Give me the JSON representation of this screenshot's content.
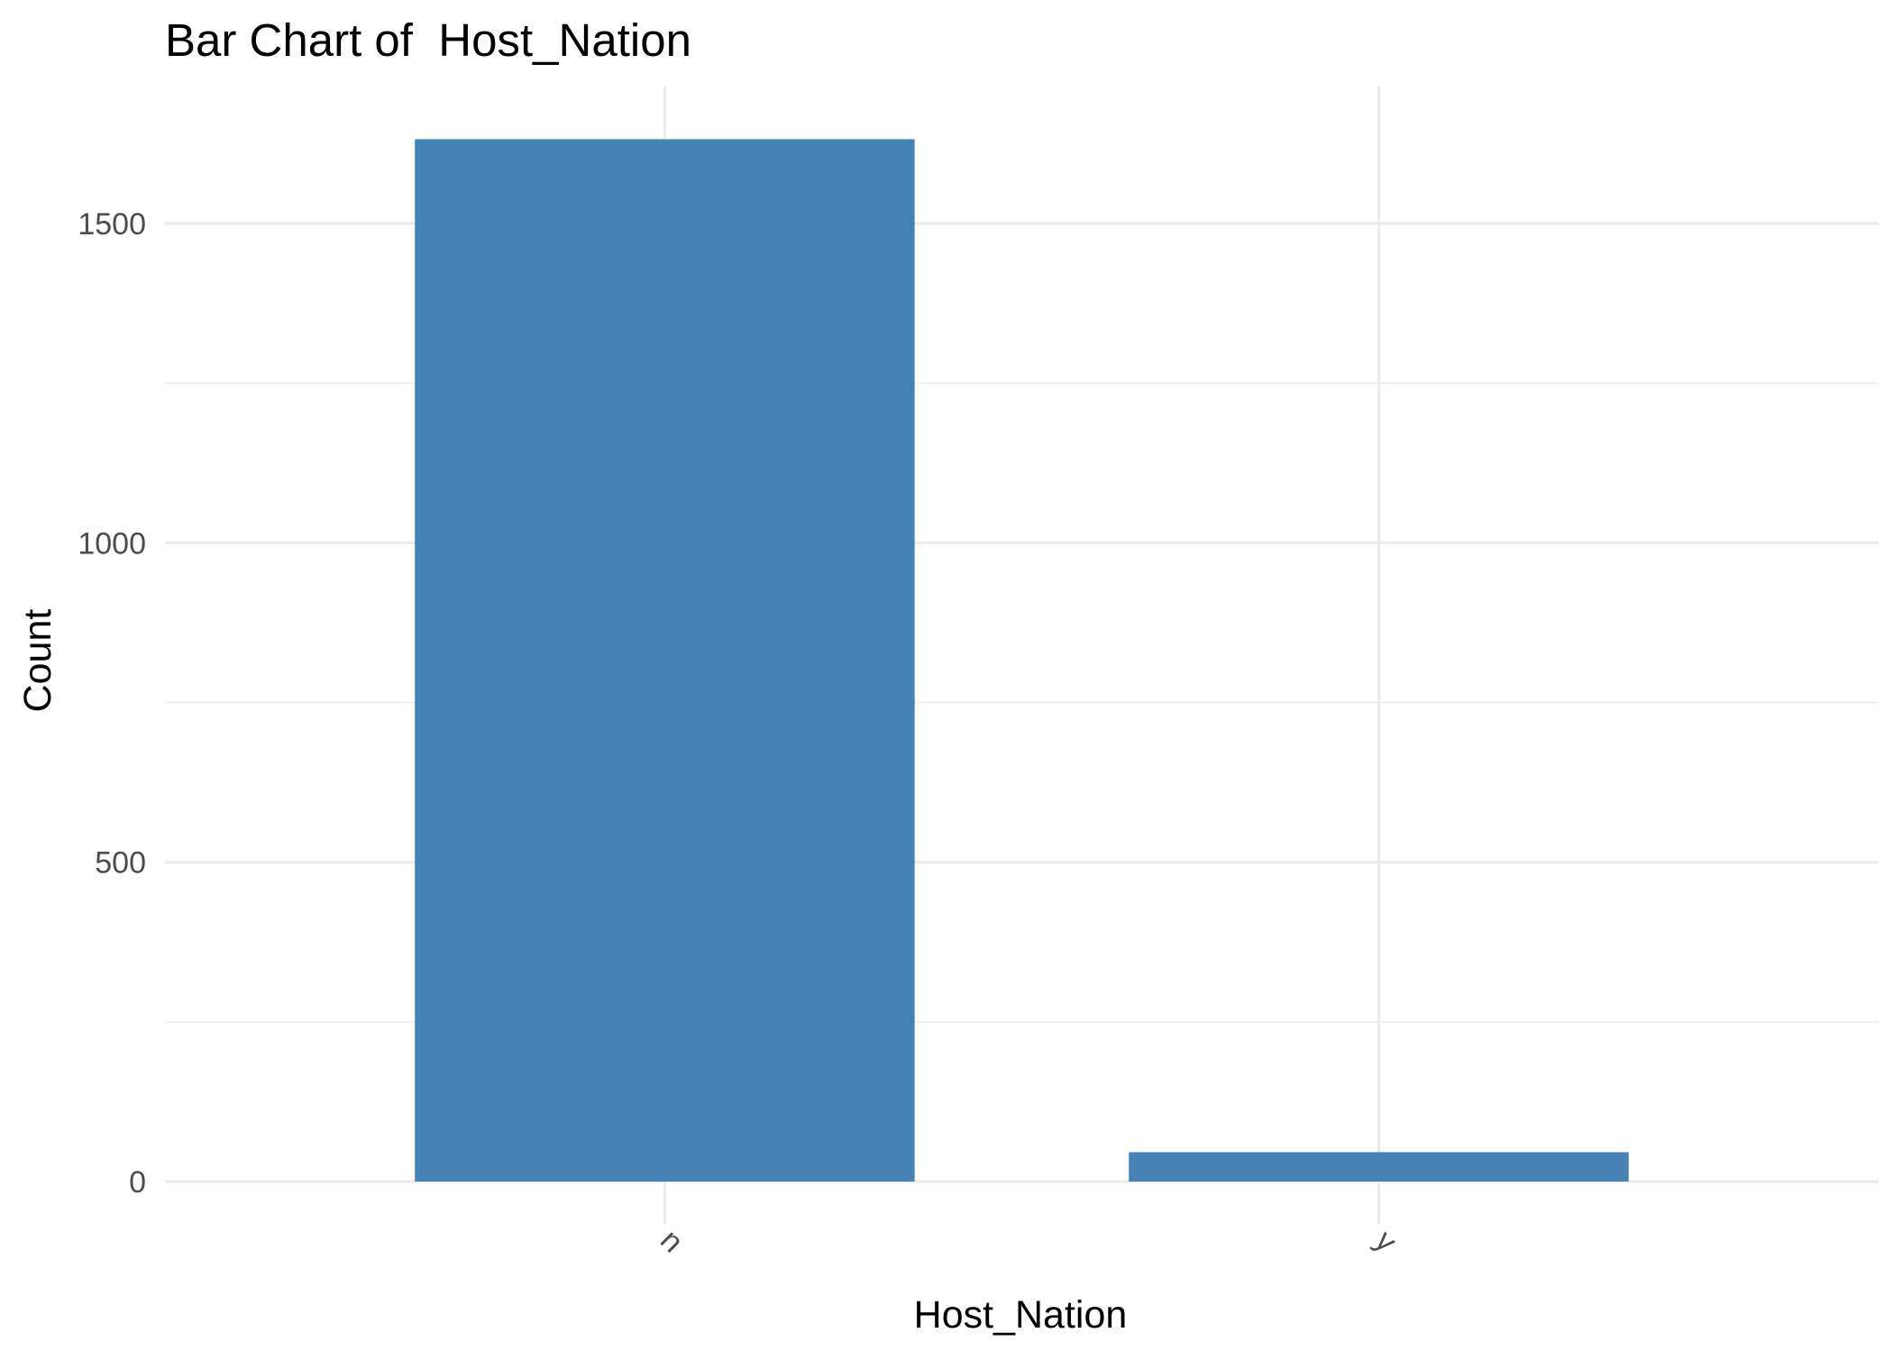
{
  "chart_data": {
    "type": "bar",
    "title": "Bar Chart of  Host_Nation",
    "xlabel": "Host_Nation",
    "ylabel": "Count",
    "categories": [
      "n",
      "y"
    ],
    "values": [
      1632,
      46
    ],
    "ylim": [
      0,
      1700
    ],
    "yticks": [
      0,
      500,
      1000,
      1500
    ],
    "ytick_labels": [
      "0",
      "500",
      "1000",
      "1500"
    ],
    "bar_color": "#4682B4",
    "grid": true,
    "legend": "none",
    "x_tick_rotation_deg": 45
  }
}
